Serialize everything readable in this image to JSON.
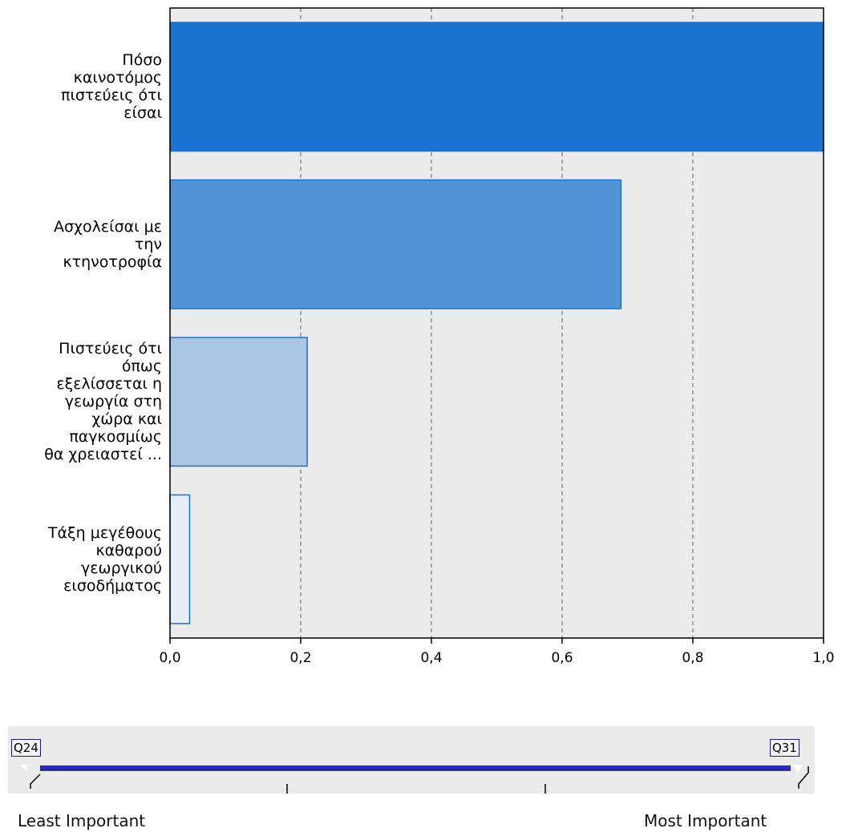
{
  "chart_data": {
    "type": "bar",
    "orientation": "horizontal",
    "categories": [
      "Πόσο\nκαινοτόμος\nπιστεύεις ότι\nείσαι",
      "Ασχολείσαι με\nτην\nκτηνοτροφία",
      "Πιστεύεις ότι\nόπως\nεξελίσσεται η\nγεωργία στη\nχώρα και\nπαγκοσμίως\nθα χρειαστεί ...",
      "Τάξη μεγέθους\nκαθαρού\nγεωργικού\nεισοδήματος"
    ],
    "values": [
      1.0,
      0.69,
      0.21,
      0.03
    ],
    "bar_colors": [
      "#1a73cf",
      "#5094d7",
      "#a9c7e5",
      "#e6eef8"
    ],
    "bar_edge_color": "#1a73cf",
    "xlim": [
      0,
      1
    ],
    "xticks": [
      "0,0",
      "0,2",
      "0,4",
      "0,6",
      "0,8",
      "1,0"
    ],
    "grid": "vertical dashed",
    "plot_background": "#ebebeb"
  },
  "slider": {
    "left_label": "Q24",
    "right_label": "Q31",
    "least_label": "Least Important",
    "most_label": "Most Important",
    "track_color": "#2b2bc8"
  }
}
